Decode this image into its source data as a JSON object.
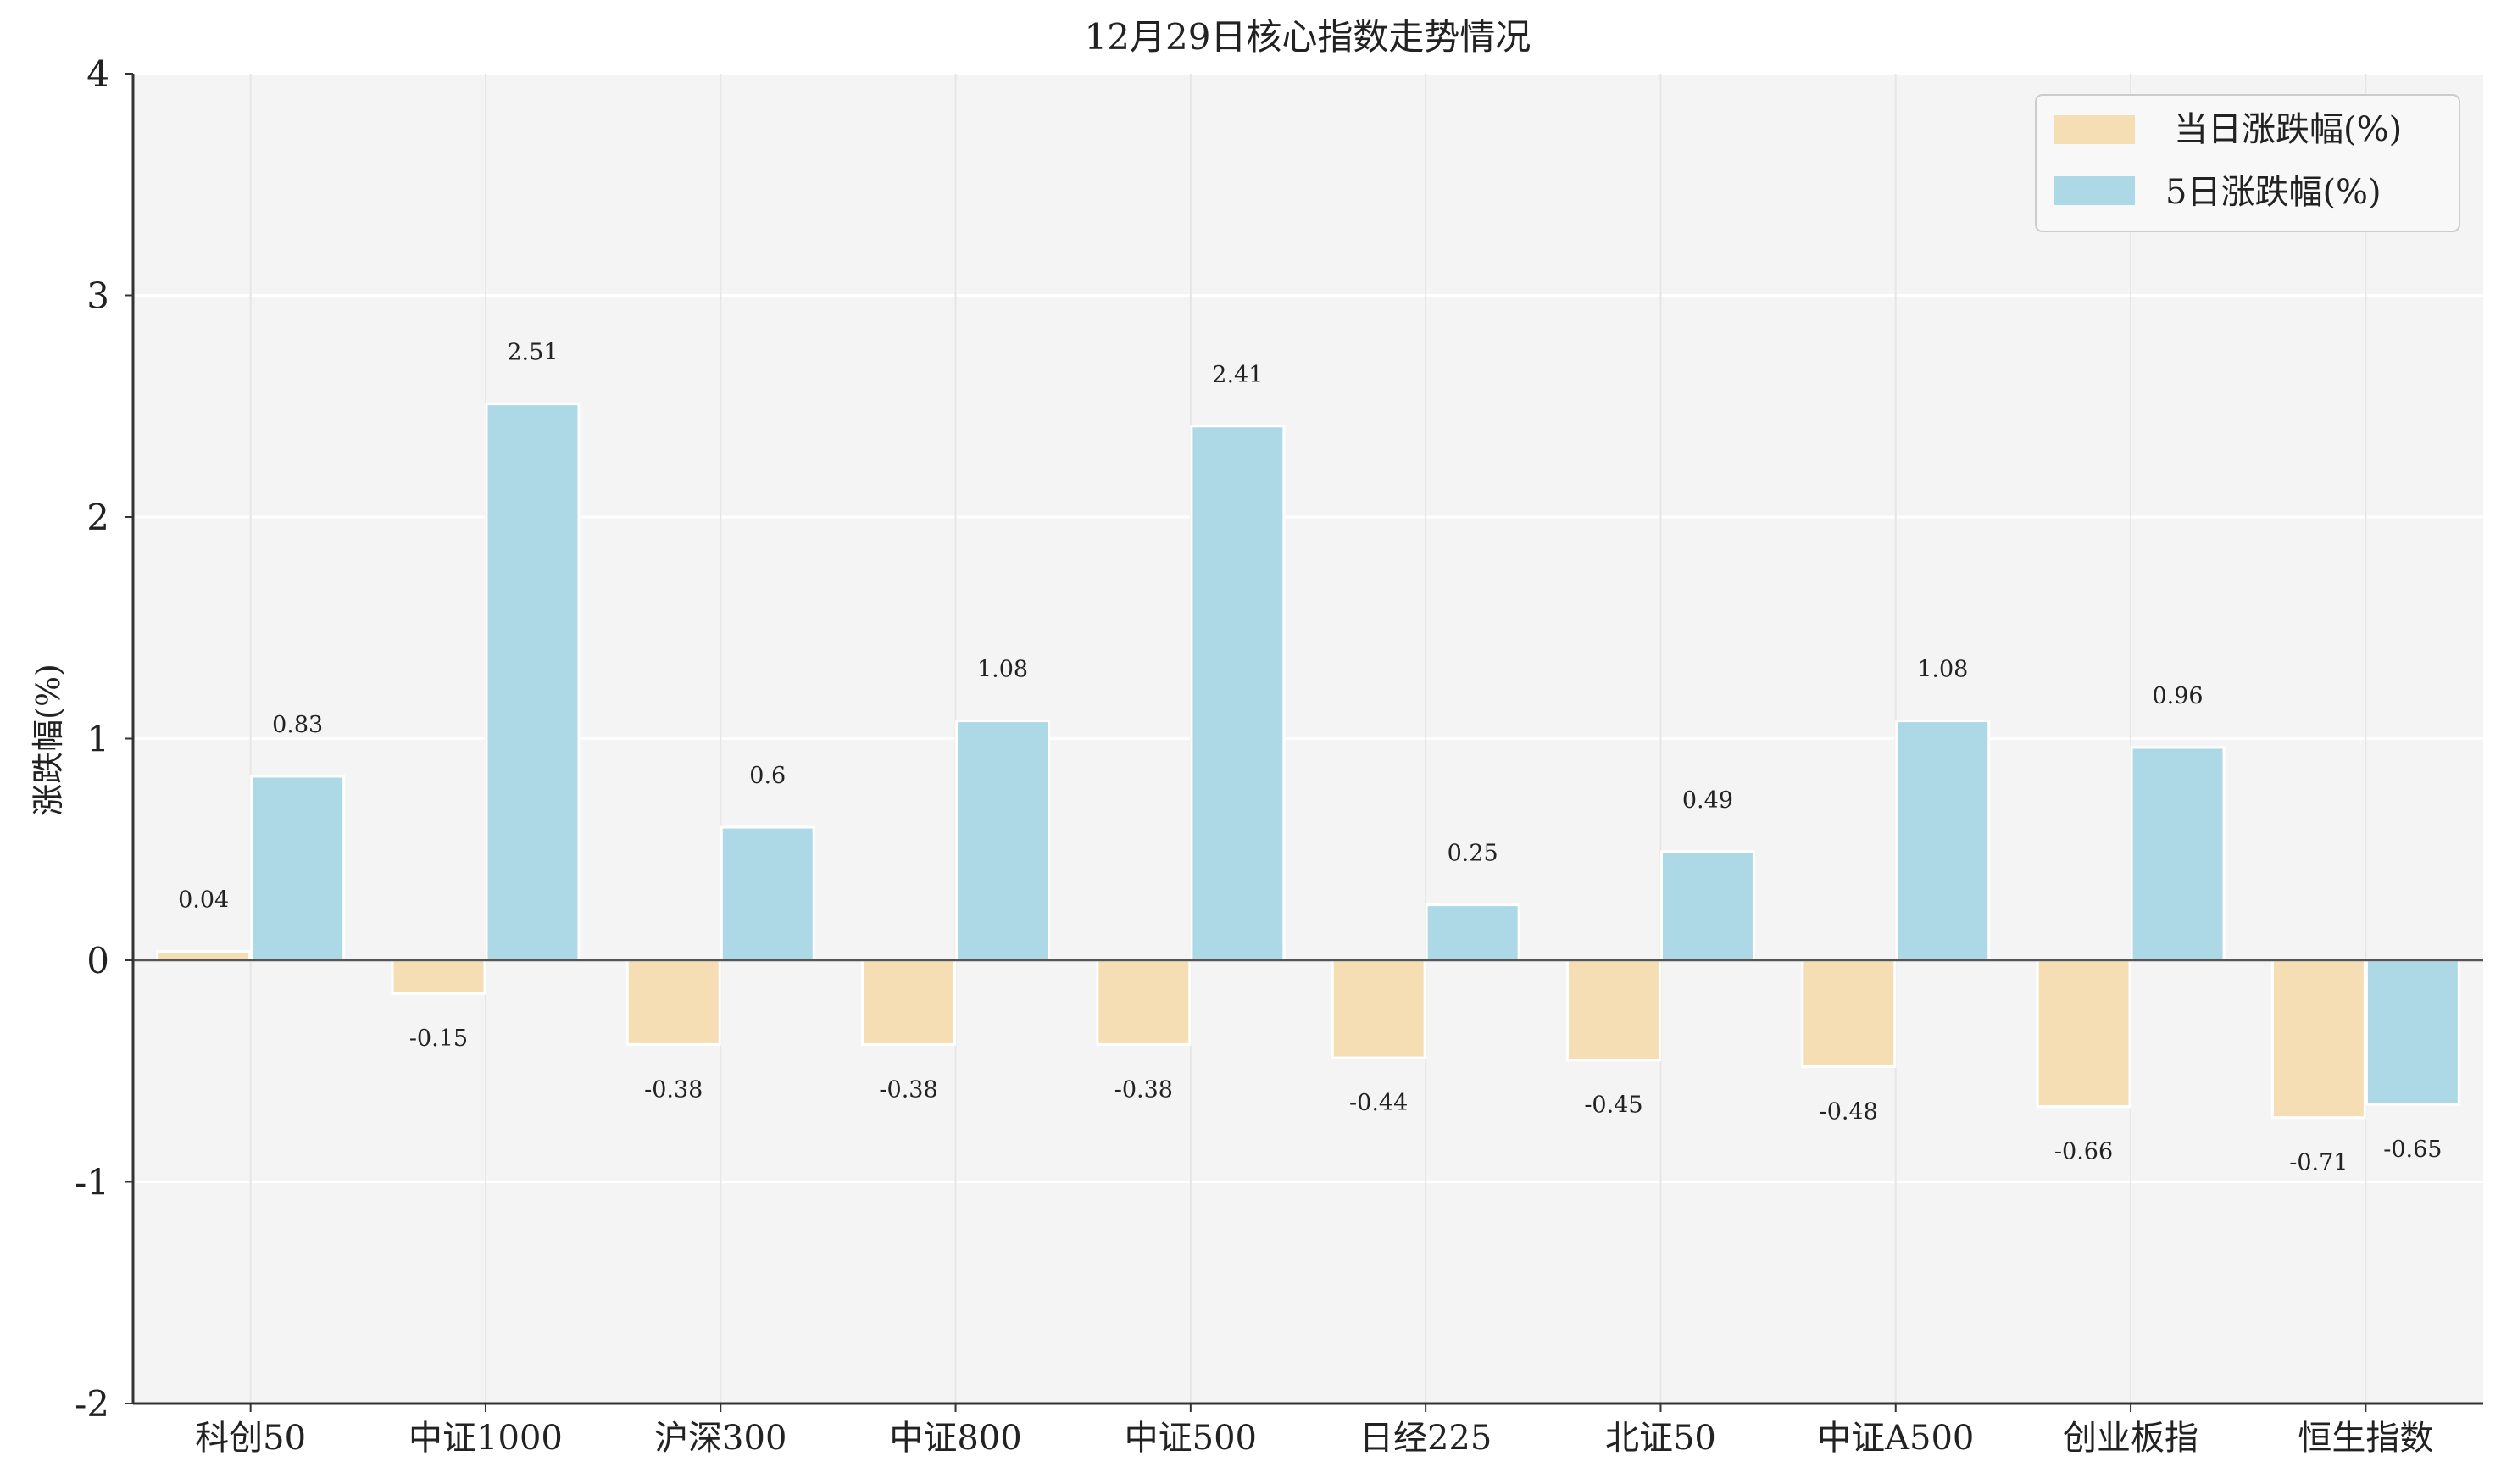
{
  "chart_data": {
    "type": "bar",
    "title": "12月29日核心指数走势情况",
    "ylabel": "涨跌幅(%)",
    "xlabel": "",
    "ylim": [
      -2,
      4
    ],
    "yticks": [
      -2,
      -1,
      0,
      1,
      2,
      3,
      4
    ],
    "grid": true,
    "legend_position": "top-right",
    "categories": [
      "科创50",
      "中证1000",
      "沪深300",
      "中证800",
      "中证500",
      "日经225",
      "北证50",
      "中证A500",
      "创业板指",
      "恒生指数"
    ],
    "series": [
      {
        "name": "当日涨跌幅(%)",
        "color": "#f5deb3",
        "values": [
          0.04,
          -0.15,
          -0.38,
          -0.38,
          -0.38,
          -0.44,
          -0.45,
          -0.48,
          -0.66,
          -0.71
        ],
        "labels": [
          "0.04",
          "-0.15",
          "-0.38",
          "-0.38",
          "-0.38",
          "-0.44",
          "-0.45",
          "-0.48",
          "-0.66",
          "-0.71"
        ]
      },
      {
        "name": "5日涨跌幅(%)",
        "color": "#add8e6",
        "values": [
          0.83,
          2.51,
          0.6,
          1.08,
          2.41,
          0.25,
          0.49,
          1.08,
          0.96,
          -0.65
        ],
        "labels": [
          "0.83",
          "2.51",
          "0.6",
          "1.08",
          "2.41",
          "0.25",
          "0.49",
          "1.08",
          "0.96",
          "-0.65"
        ]
      }
    ]
  },
  "colors": {
    "plot_background": "#f4f4f4",
    "grid": "#ffffff",
    "vertical_grid": "#e6e6e6",
    "zero_line": "#555555",
    "axis": "#333333"
  }
}
